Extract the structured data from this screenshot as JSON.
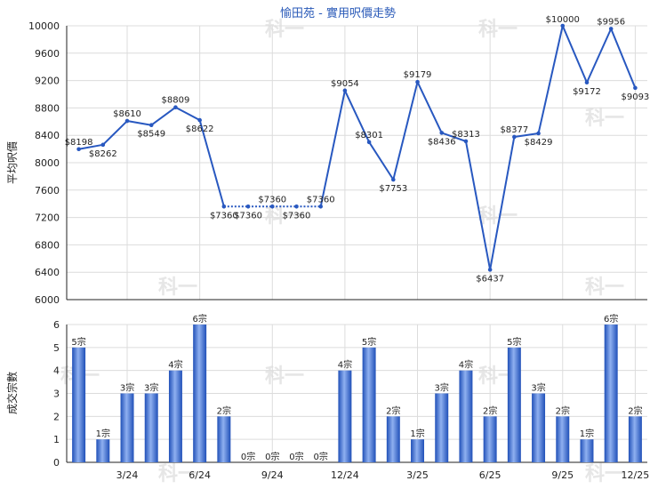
{
  "title": "愉田苑 - 實用呎價走勢",
  "watermark": "科一",
  "colors": {
    "line": "#2858c0",
    "bar_dark": "#2050b8",
    "bar_light": "#8fb0f0",
    "grid": "#dcdcdc",
    "axis": "#222222"
  },
  "chart_data": [
    {
      "type": "line",
      "ylabel": "平均呎價",
      "ylim": [
        6000,
        10000
      ],
      "yticks": [
        6000,
        6400,
        6800,
        7200,
        7600,
        8000,
        8400,
        8800,
        9200,
        9600,
        10000
      ],
      "values": [
        8198,
        8262,
        8610,
        8549,
        8809,
        8622,
        7360,
        7360,
        7360,
        7360,
        7360,
        9054,
        8301,
        7753,
        9179,
        8436,
        8313,
        6437,
        8377,
        8429,
        10000,
        9172,
        9956,
        9093
      ],
      "labels": [
        "$8198",
        "$8262",
        "$8610",
        "$8549",
        "$8809",
        "$8622",
        "$7360",
        "$7360",
        "$7360",
        "$7360",
        "$7360",
        "$9054",
        "$8301",
        "$7753",
        "$9179",
        "$8436",
        "$8313",
        "$6437",
        "$8377",
        "$8429",
        "$10000",
        "$9172",
        "$9956",
        "$9093"
      ],
      "dotted_segment": [
        6,
        10
      ]
    },
    {
      "type": "bar",
      "ylabel": "成交宗數",
      "ylim": [
        0,
        6
      ],
      "yticks": [
        0,
        1,
        2,
        3,
        4,
        5,
        6
      ],
      "values": [
        5,
        1,
        3,
        3,
        4,
        6,
        2,
        0,
        0,
        0,
        0,
        4,
        5,
        2,
        1,
        3,
        4,
        2,
        5,
        3,
        2,
        1,
        6,
        2
      ],
      "labels": [
        "5宗",
        "1宗",
        "3宗",
        "3宗",
        "4宗",
        "6宗",
        "2宗",
        "0宗",
        "0宗",
        "0宗",
        "0宗",
        "4宗",
        "5宗",
        "2宗",
        "1宗",
        "3宗",
        "4宗",
        "2宗",
        "5宗",
        "3宗",
        "2宗",
        "1宗",
        "6宗",
        "2宗"
      ],
      "xticks": [
        {
          "index": 2,
          "label": "3/24"
        },
        {
          "index": 5,
          "label": "6/24"
        },
        {
          "index": 8,
          "label": "9/24"
        },
        {
          "index": 11,
          "label": "12/24"
        },
        {
          "index": 14,
          "label": "3/25"
        },
        {
          "index": 17,
          "label": "6/25"
        },
        {
          "index": 20,
          "label": "9/25"
        },
        {
          "index": 23,
          "label": "12/25"
        }
      ]
    }
  ]
}
